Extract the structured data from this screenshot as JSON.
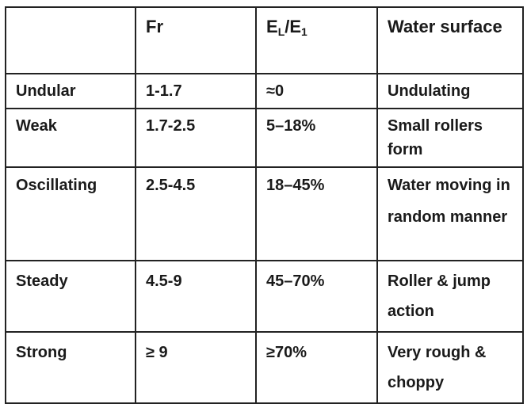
{
  "table": {
    "header": [
      "",
      "Fr",
      [
        "E",
        "L",
        "/E",
        "1"
      ],
      "Water surface"
    ],
    "rows": [
      [
        "Undular",
        "1-1.7",
        "≈0",
        "Undulating"
      ],
      [
        "Weak",
        "1.7-2.5",
        "5–18%",
        "Small rollers form"
      ],
      [
        "Oscillating",
        "2.5-4.5",
        "18–45%",
        "Water moving in random manner"
      ],
      [
        "Steady",
        "4.5-9",
        "45–70%",
        "Roller & jump action"
      ],
      [
        "Strong",
        "≥ 9",
        "≥70%",
        "Very rough & choppy"
      ]
    ]
  }
}
